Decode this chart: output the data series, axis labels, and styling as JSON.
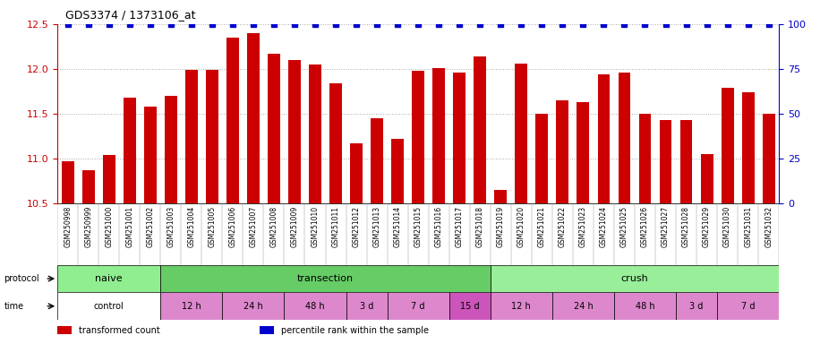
{
  "title": "GDS3374 / 1373106_at",
  "samples": [
    "GSM250998",
    "GSM250999",
    "GSM251000",
    "GSM251001",
    "GSM251002",
    "GSM251003",
    "GSM251004",
    "GSM251005",
    "GSM251006",
    "GSM251007",
    "GSM251008",
    "GSM251009",
    "GSM251010",
    "GSM251011",
    "GSM251012",
    "GSM251013",
    "GSM251014",
    "GSM251015",
    "GSM251016",
    "GSM251017",
    "GSM251018",
    "GSM251019",
    "GSM251020",
    "GSM251021",
    "GSM251022",
    "GSM251023",
    "GSM251024",
    "GSM251025",
    "GSM251026",
    "GSM251027",
    "GSM251028",
    "GSM251029",
    "GSM251030",
    "GSM251031",
    "GSM251032"
  ],
  "bar_values": [
    10.97,
    10.87,
    11.04,
    11.68,
    11.58,
    11.7,
    11.99,
    11.99,
    12.35,
    12.4,
    12.17,
    12.1,
    12.05,
    11.84,
    11.17,
    11.45,
    11.22,
    11.98,
    12.01,
    11.96,
    12.14,
    10.65,
    12.06,
    11.5,
    11.65,
    11.63,
    11.94,
    11.96,
    11.5,
    11.43,
    11.43,
    11.05,
    11.79,
    11.74,
    11.5
  ],
  "percentile_values": [
    100,
    100,
    100,
    100,
    100,
    100,
    100,
    100,
    100,
    100,
    100,
    100,
    100,
    100,
    100,
    100,
    100,
    100,
    100,
    100,
    100,
    100,
    100,
    100,
    100,
    100,
    100,
    100,
    100,
    100,
    100,
    100,
    100,
    100,
    100
  ],
  "ylim_left": [
    10.5,
    12.5
  ],
  "ylim_right": [
    0,
    100
  ],
  "yticks_left": [
    10.5,
    11.0,
    11.5,
    12.0,
    12.5
  ],
  "yticks_right": [
    0,
    25,
    50,
    75,
    100
  ],
  "bar_color": "#cc0000",
  "percentile_color": "#0000cc",
  "protocol_groups": [
    {
      "label": "naive",
      "start": 0,
      "end": 4,
      "color": "#90ee90"
    },
    {
      "label": "transection",
      "start": 5,
      "end": 20,
      "color": "#66cc66"
    },
    {
      "label": "crush",
      "start": 21,
      "end": 34,
      "color": "#99ee99"
    }
  ],
  "time_groups": [
    {
      "label": "control",
      "start": 0,
      "end": 4,
      "color": "#ffffff"
    },
    {
      "label": "12 h",
      "start": 5,
      "end": 7,
      "color": "#dd88cc"
    },
    {
      "label": "24 h",
      "start": 8,
      "end": 10,
      "color": "#dd88cc"
    },
    {
      "label": "48 h",
      "start": 11,
      "end": 13,
      "color": "#dd88cc"
    },
    {
      "label": "3 d",
      "start": 14,
      "end": 15,
      "color": "#dd88cc"
    },
    {
      "label": "7 d",
      "start": 16,
      "end": 18,
      "color": "#dd88cc"
    },
    {
      "label": "15 d",
      "start": 19,
      "end": 20,
      "color": "#cc55bb"
    },
    {
      "label": "12 h",
      "start": 21,
      "end": 23,
      "color": "#dd88cc"
    },
    {
      "label": "24 h",
      "start": 24,
      "end": 26,
      "color": "#dd88cc"
    },
    {
      "label": "48 h",
      "start": 27,
      "end": 29,
      "color": "#dd88cc"
    },
    {
      "label": "3 d",
      "start": 30,
      "end": 31,
      "color": "#dd88cc"
    },
    {
      "label": "7 d",
      "start": 32,
      "end": 34,
      "color": "#dd88cc"
    }
  ],
  "legend_items": [
    {
      "label": "transformed count",
      "color": "#cc0000",
      "marker": "s"
    },
    {
      "label": "percentile rank within the sample",
      "color": "#0000cc",
      "marker": "s"
    }
  ],
  "background_color": "#f0f0f0",
  "grid_color": "#aaaaaa"
}
